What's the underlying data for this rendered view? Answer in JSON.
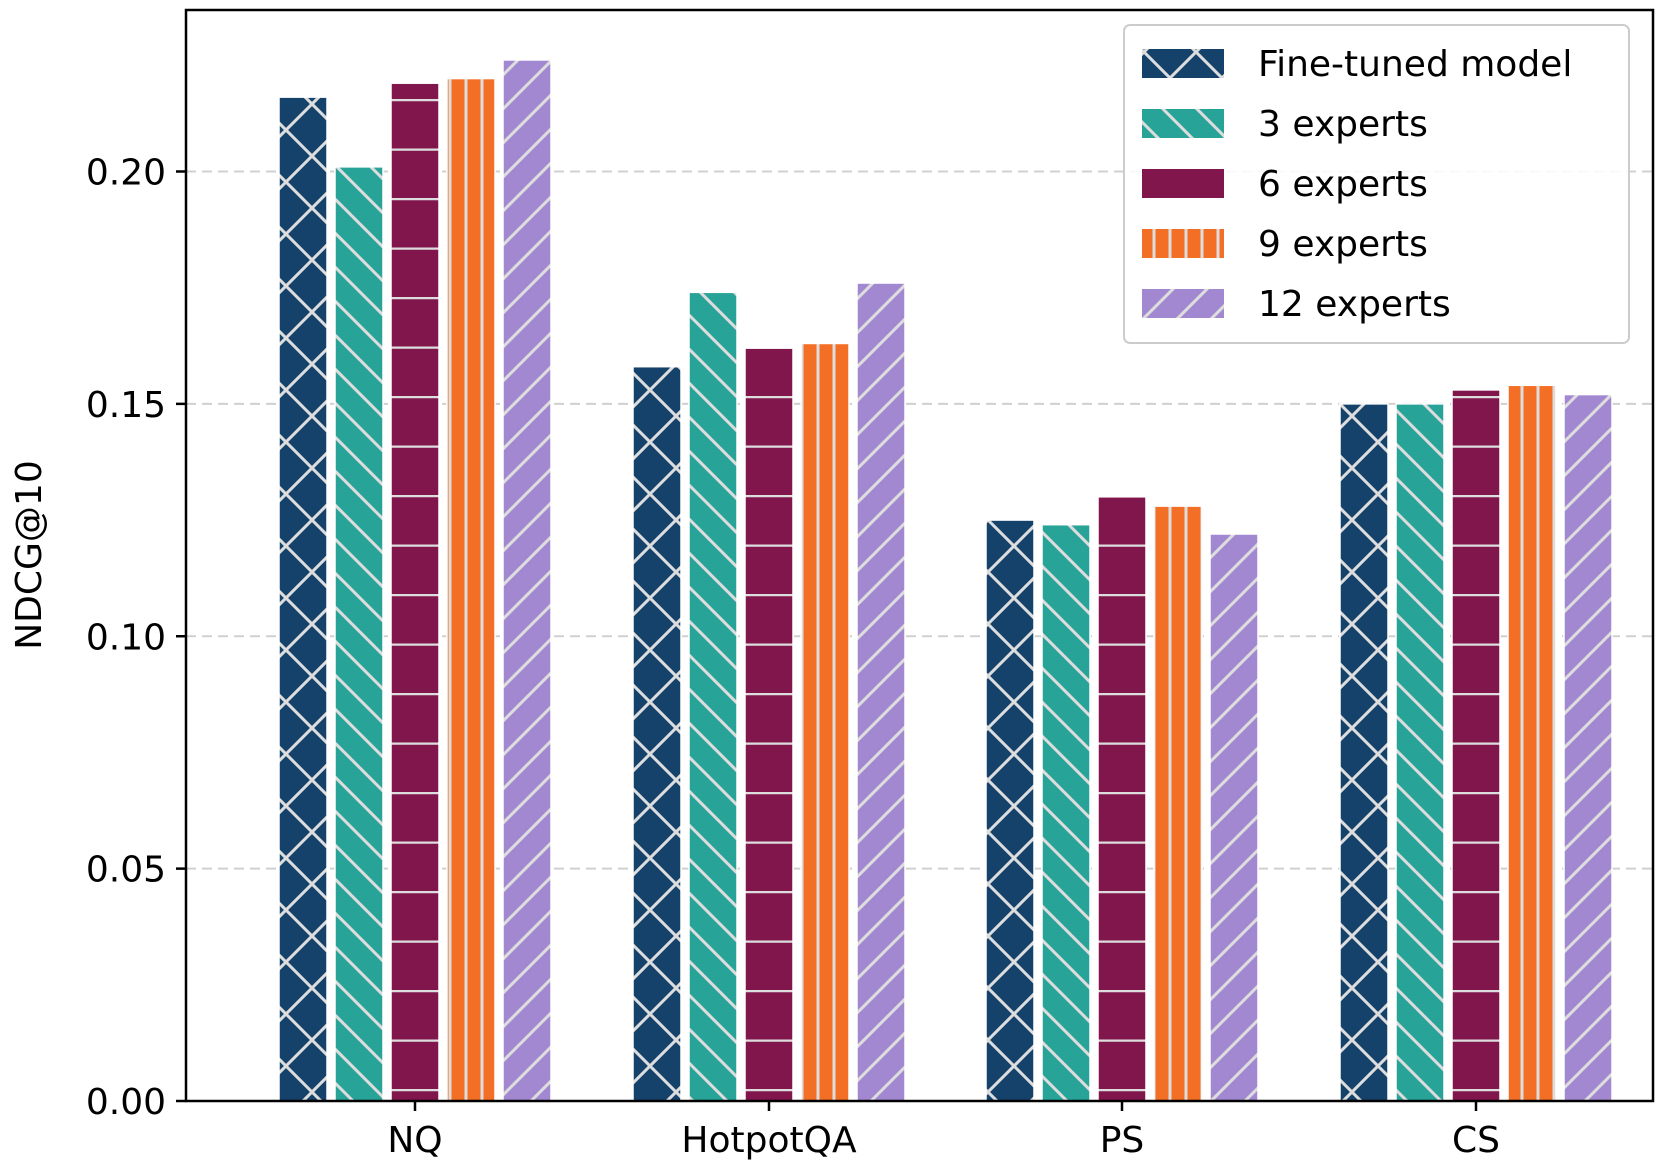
{
  "chart_data": {
    "type": "bar",
    "title": "",
    "xlabel": "",
    "ylabel": "NDCG@10",
    "ylim": [
      0,
      0.235
    ],
    "yticks": [
      "0.00",
      "0.05",
      "0.10",
      "0.15",
      "0.20"
    ],
    "ytick_values": [
      0,
      0.05,
      0.1,
      0.15,
      0.2
    ],
    "grid": "horizontal dashed",
    "legend_position": "top-right",
    "categories": [
      "NQ",
      "HotpotQA",
      "PS",
      "CS"
    ],
    "series": [
      {
        "name": "Fine-tuned model",
        "color": "#15426b",
        "hatch": "cross",
        "values": [
          0.216,
          0.158,
          0.125,
          0.15
        ]
      },
      {
        "name": "3 experts",
        "color": "#28a397",
        "hatch": "backslash",
        "values": [
          0.201,
          0.174,
          0.124,
          0.15
        ]
      },
      {
        "name": "6 experts",
        "color": "#80164c",
        "hatch": "horizontal",
        "values": [
          0.219,
          0.162,
          0.13,
          0.153
        ]
      },
      {
        "name": "9 experts",
        "color": "#f36f26",
        "hatch": "vertical",
        "values": [
          0.22,
          0.163,
          0.128,
          0.154
        ]
      },
      {
        "name": "12 experts",
        "color": "#a287d1",
        "hatch": "slash",
        "values": [
          0.224,
          0.176,
          0.122,
          0.152
        ]
      }
    ]
  }
}
